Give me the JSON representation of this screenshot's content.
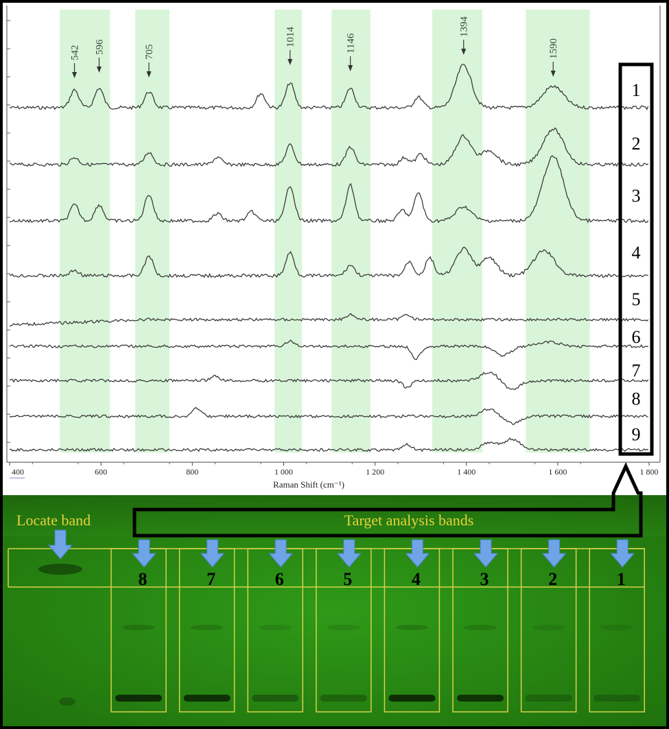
{
  "chart_data": {
    "type": "line",
    "xlabel": "Raman Shift (cm⁻¹)",
    "x_ticks": [
      "400",
      "600",
      "800",
      "1 000",
      "1 200",
      "1 400",
      "1 600",
      "1 800"
    ],
    "xlim": [
      400,
      1800
    ],
    "peaks": [
      542,
      596,
      705,
      1014,
      1146,
      1394,
      1590
    ],
    "highlighted_bands": [
      [
        510,
        620
      ],
      [
        675,
        750
      ],
      [
        980,
        1040
      ],
      [
        1105,
        1190
      ],
      [
        1325,
        1435
      ],
      [
        1530,
        1670
      ]
    ],
    "series": [
      {
        "name": "1",
        "peaks": [
          {
            "x": 542,
            "h": 0.5
          },
          {
            "x": 596,
            "h": 0.55
          },
          {
            "x": 705,
            "h": 0.45
          },
          {
            "x": 950,
            "h": 0.4
          },
          {
            "x": 1014,
            "h": 0.7
          },
          {
            "x": 1146,
            "h": 0.55
          },
          {
            "x": 1295,
            "h": 0.3
          },
          {
            "x": 1394,
            "h": 1.2
          },
          {
            "x": 1590,
            "h": 0.6
          }
        ]
      },
      {
        "name": "2",
        "peaks": [
          {
            "x": 542,
            "h": 0.2
          },
          {
            "x": 705,
            "h": 0.35
          },
          {
            "x": 855,
            "h": 0.2
          },
          {
            "x": 1014,
            "h": 0.55
          },
          {
            "x": 1146,
            "h": 0.5
          },
          {
            "x": 1265,
            "h": 0.2
          },
          {
            "x": 1300,
            "h": 0.3
          },
          {
            "x": 1394,
            "h": 0.8
          },
          {
            "x": 1450,
            "h": 0.4
          },
          {
            "x": 1590,
            "h": 1.0
          }
        ]
      },
      {
        "name": "3",
        "peaks": [
          {
            "x": 542,
            "h": 0.45
          },
          {
            "x": 596,
            "h": 0.45
          },
          {
            "x": 705,
            "h": 0.75
          },
          {
            "x": 855,
            "h": 0.2
          },
          {
            "x": 930,
            "h": 0.25
          },
          {
            "x": 1014,
            "h": 1.0
          },
          {
            "x": 1146,
            "h": 1.0
          },
          {
            "x": 1260,
            "h": 0.3
          },
          {
            "x": 1295,
            "h": 0.8
          },
          {
            "x": 1394,
            "h": 0.4
          },
          {
            "x": 1590,
            "h": 1.8
          }
        ]
      },
      {
        "name": "4",
        "peaks": [
          {
            "x": 542,
            "h": 0.15
          },
          {
            "x": 705,
            "h": 0.55
          },
          {
            "x": 1014,
            "h": 0.65
          },
          {
            "x": 1146,
            "h": 0.3
          },
          {
            "x": 1275,
            "h": 0.4
          },
          {
            "x": 1320,
            "h": 0.5
          },
          {
            "x": 1394,
            "h": 0.75
          },
          {
            "x": 1450,
            "h": 0.5
          },
          {
            "x": 1570,
            "h": 0.7
          }
        ]
      },
      {
        "name": "5",
        "peaks": [
          {
            "x": 1146,
            "h": 0.15
          },
          {
            "x": 1270,
            "h": 0.15
          }
        ]
      },
      {
        "name": "6",
        "peaks": [
          {
            "x": 1014,
            "h": 0.15
          },
          {
            "x": 1290,
            "h": -0.35
          },
          {
            "x": 1480,
            "h": -0.25
          },
          {
            "x": 1580,
            "h": 0.12
          }
        ]
      },
      {
        "name": "7",
        "peaks": [
          {
            "x": 850,
            "h": 0.12
          },
          {
            "x": 1270,
            "h": -0.2
          },
          {
            "x": 1450,
            "h": 0.25
          },
          {
            "x": 1500,
            "h": -0.25
          }
        ]
      },
      {
        "name": "8",
        "peaks": [
          {
            "x": 810,
            "h": 0.22
          },
          {
            "x": 1450,
            "h": 0.2
          },
          {
            "x": 1500,
            "h": -0.2
          }
        ]
      },
      {
        "name": "9",
        "peaks": [
          {
            "x": 1270,
            "h": 0.15
          },
          {
            "x": 1450,
            "h": 0.2
          },
          {
            "x": 1500,
            "h": 0.3
          }
        ]
      }
    ]
  },
  "gel": {
    "locate_label": "Locate band",
    "target_label": "Target analysis bands",
    "lanes": [
      {
        "label": "8",
        "band_strength": 0.95
      },
      {
        "label": "7",
        "band_strength": 0.9
      },
      {
        "label": "6",
        "band_strength": 0.3
      },
      {
        "label": "5",
        "band_strength": 0.2
      },
      {
        "label": "4",
        "band_strength": 0.95
      },
      {
        "label": "3",
        "band_strength": 0.85
      },
      {
        "label": "2",
        "band_strength": 0.15
      },
      {
        "label": "1",
        "band_strength": 0.15
      }
    ]
  },
  "colors": {
    "band_highlight": "#d9f5d9",
    "trace": "#3a3a3a",
    "gel_green": "#2e8c16",
    "gel_text": "#e8d23a",
    "arrow_blue": "#6fa4e6"
  }
}
